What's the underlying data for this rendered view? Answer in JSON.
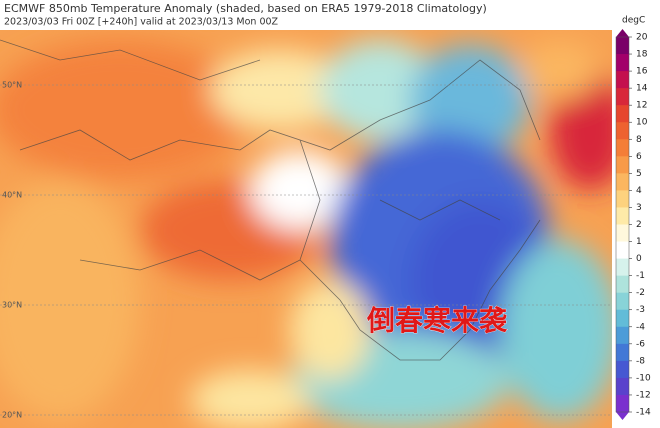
{
  "map": {
    "title": "ECMWF 850mb Temperature Anomaly (shaded, based on ERA5 1979-2018 Climatology)",
    "subtitle": "2023/03/03 Fri 00Z [+240h] valid at 2023/03/13 Mon 00Z",
    "latitude_labels": [
      "50°N",
      "40°N",
      "30°N",
      "20°N"
    ],
    "annotation": "倒春寒来袭",
    "colorbar": {
      "unit": "degC",
      "ticks": [
        20,
        18,
        16,
        14,
        12,
        10,
        8,
        6,
        5,
        4,
        3,
        2,
        1,
        0,
        -1,
        -2,
        -3,
        -4,
        -6,
        -8,
        -10,
        -12,
        -14
      ],
      "colors": [
        "#7a0068",
        "#a2006a",
        "#c4104e",
        "#d8283a",
        "#e6462e",
        "#ee6230",
        "#f47e38",
        "#f89a48",
        "#fbb660",
        "#fdd27e",
        "#feeaa8",
        "#fff8dc",
        "#ffffff",
        "#d6f2ec",
        "#aee3dc",
        "#88d3d8",
        "#62bcd8",
        "#4c9cd8",
        "#4278d6",
        "#4658d2",
        "#5a42cc",
        "#7a30ce"
      ]
    }
  }
}
